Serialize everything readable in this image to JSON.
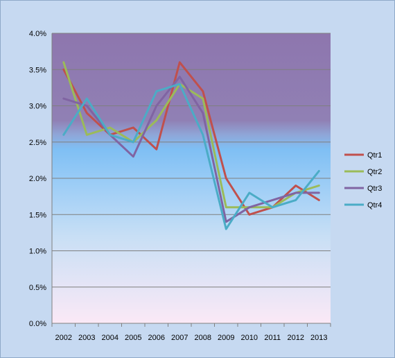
{
  "chart_data": {
    "type": "line",
    "title": "",
    "xlabel": "",
    "ylabel": "",
    "x": [
      "2002",
      "2003",
      "2004",
      "2005",
      "2006",
      "2007",
      "2008",
      "2009",
      "2010",
      "2011",
      "2012",
      "2013"
    ],
    "ylim": [
      0,
      0.04
    ],
    "yticks": [
      "0.0%",
      "0.5%",
      "1.0%",
      "1.5%",
      "2.0%",
      "2.5%",
      "3.0%",
      "3.5%",
      "4.0%"
    ],
    "grid": true,
    "legend": "right",
    "series": [
      {
        "name": "Qtr1",
        "color": "#c0504d",
        "values": [
          0.035,
          0.029,
          0.026,
          0.027,
          0.024,
          0.036,
          0.032,
          0.02,
          0.015,
          0.016,
          0.019,
          0.017
        ]
      },
      {
        "name": "Qtr2",
        "color": "#9bbb59",
        "values": [
          0.036,
          0.026,
          0.027,
          0.025,
          0.028,
          0.033,
          0.031,
          0.016,
          0.016,
          0.016,
          0.018,
          0.019
        ]
      },
      {
        "name": "Qtr3",
        "color": "#8064a2",
        "values": [
          0.031,
          0.03,
          0.026,
          0.023,
          0.03,
          0.034,
          0.029,
          0.014,
          0.016,
          0.017,
          0.018,
          0.018
        ]
      },
      {
        "name": "Qtr4",
        "color": "#4bacc6",
        "values": [
          0.026,
          0.031,
          0.026,
          0.025,
          0.032,
          0.033,
          0.026,
          0.013,
          0.018,
          0.016,
          0.017,
          0.021
        ]
      }
    ]
  }
}
